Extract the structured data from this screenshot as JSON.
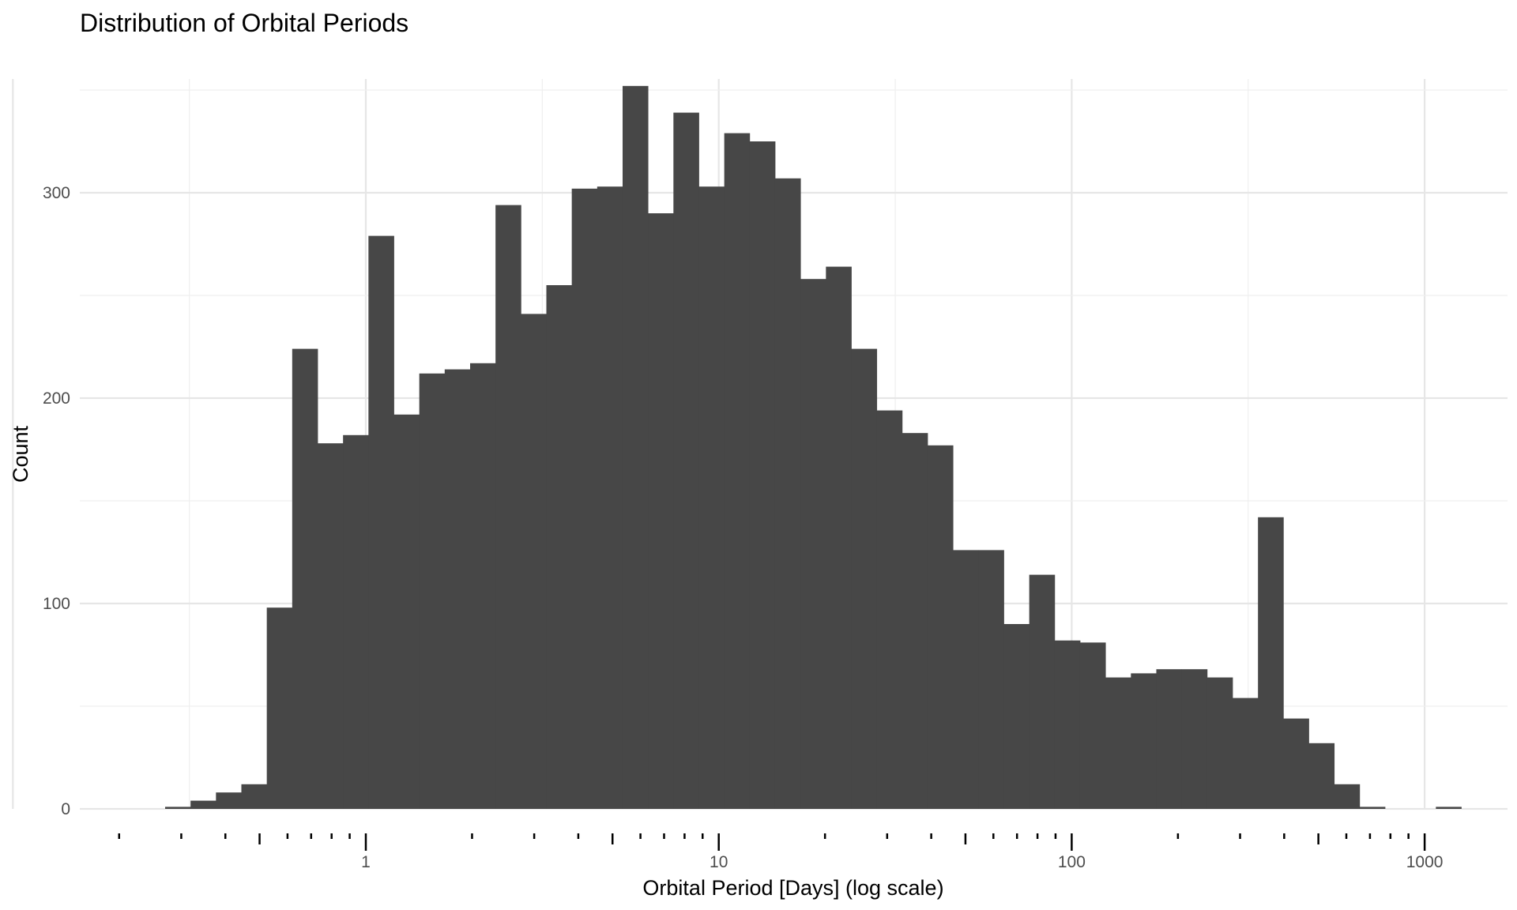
{
  "chart_data": {
    "type": "bar",
    "title": "Distribution of Orbital Periods",
    "xlabel": "Orbital Period [Days] (log scale)",
    "ylabel": "Count",
    "x_scale": "log10",
    "xlim": [
      0.18,
      1500
    ],
    "ylim": [
      0,
      360
    ],
    "x_tick_labels": [
      {
        "value": 1,
        "label": "1"
      },
      {
        "value": 10,
        "label": "10"
      },
      {
        "value": 100,
        "label": "100"
      },
      {
        "value": 1000,
        "label": "1000"
      }
    ],
    "y_tick_labels": [
      {
        "value": 0,
        "label": "0"
      },
      {
        "value": 100,
        "label": "100"
      },
      {
        "value": 200,
        "label": "200"
      },
      {
        "value": 300,
        "label": "300"
      }
    ],
    "grid": true,
    "bar_color": "#474747",
    "bin_edges": [
      0.27,
      0.3187,
      0.3762,
      0.444,
      0.5241,
      0.6186,
      0.7302,
      0.8619,
      1.0173,
      1.2008,
      1.4174,
      1.6729,
      1.9747,
      2.3308,
      2.7511,
      3.2473,
      3.8329,
      4.5241,
      5.34,
      6.3031,
      7.4398,
      8.7815,
      10.365,
      12.234,
      14.441,
      17.046,
      20.12,
      23.748,
      28.031,
      33.087,
      39.054,
      46.097,
      54.41,
      64.222,
      75.805,
      89.476,
      105.61,
      124.66,
      147.14,
      173.67,
      205.0,
      241.97,
      285.6,
      337.11,
      397.9,
      469.66,
      554.36,
      654.33,
      772.34,
      911.63,
      1076.0,
      1270.1
    ],
    "counts": [
      1,
      4,
      8,
      12,
      98,
      224,
      178,
      182,
      279,
      192,
      212,
      214,
      217,
      294,
      241,
      255,
      302,
      303,
      352,
      290,
      339,
      303,
      329,
      325,
      307,
      258,
      264,
      224,
      194,
      183,
      177,
      126,
      126,
      90,
      114,
      82,
      81,
      64,
      66,
      68,
      68,
      64,
      54,
      142,
      44,
      32,
      12,
      1,
      0,
      0,
      1
    ]
  }
}
